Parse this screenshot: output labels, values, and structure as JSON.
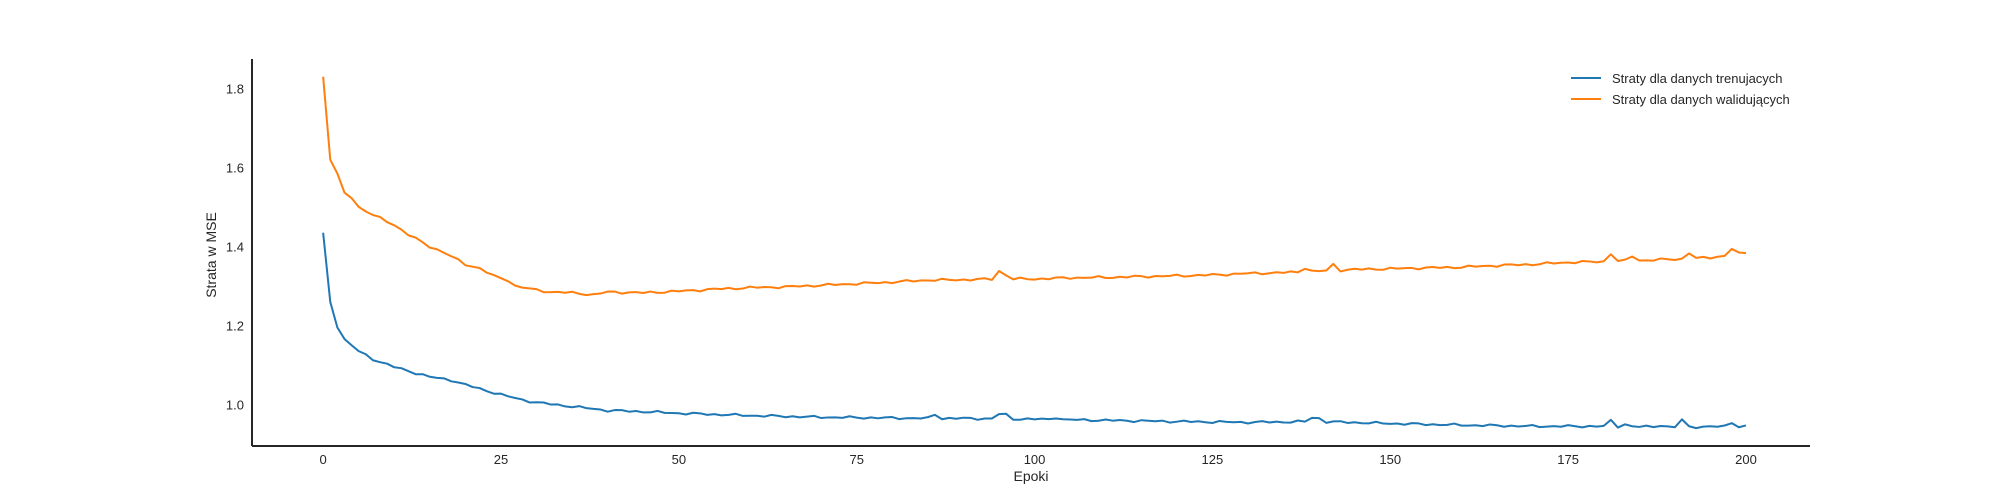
{
  "chart_data": {
    "type": "line",
    "xlabel": "Epoki",
    "ylabel": "Strata w MSE",
    "xlim": [
      -10,
      209
    ],
    "ylim": [
      0.895,
      1.875
    ],
    "xticks": [
      0,
      25,
      50,
      75,
      100,
      125,
      150,
      175,
      200
    ],
    "yticks": [
      1.0,
      1.2,
      1.4,
      1.6,
      1.8
    ],
    "ytick_labels": [
      "1.0",
      "1.2",
      "1.4",
      "1.6",
      "1.8"
    ],
    "grid": false,
    "legend_position": "top-right",
    "series": [
      {
        "name": "Straty dla danych trenujacych",
        "color": "#1f77b4",
        "anchors": [
          [
            0,
            1.435
          ],
          [
            1,
            1.26
          ],
          [
            2,
            1.195
          ],
          [
            3,
            1.165
          ],
          [
            4,
            1.15
          ],
          [
            5,
            1.135
          ],
          [
            7,
            1.115
          ],
          [
            10,
            1.095
          ],
          [
            12,
            1.085
          ],
          [
            15,
            1.07
          ],
          [
            18,
            1.062
          ],
          [
            20,
            1.05
          ],
          [
            22,
            1.04
          ],
          [
            25,
            1.025
          ],
          [
            28,
            1.012
          ],
          [
            30,
            1.005
          ],
          [
            35,
            0.995
          ],
          [
            40,
            0.985
          ],
          [
            45,
            0.982
          ],
          [
            50,
            0.978
          ],
          [
            60,
            0.972
          ],
          [
            70,
            0.968
          ],
          [
            80,
            0.966
          ],
          [
            85,
            0.965
          ],
          [
            90,
            0.965
          ],
          [
            100,
            0.963
          ],
          [
            110,
            0.96
          ],
          [
            120,
            0.957
          ],
          [
            130,
            0.955
          ],
          [
            140,
            0.957
          ],
          [
            150,
            0.952
          ],
          [
            160,
            0.948
          ],
          [
            170,
            0.945
          ],
          [
            180,
            0.945
          ],
          [
            190,
            0.943
          ],
          [
            200,
            0.945
          ]
        ],
        "bumps": [
          [
            86,
            0.01
          ],
          [
            95,
            0.012
          ],
          [
            96,
            0.01
          ],
          [
            103,
            0.006
          ],
          [
            139,
            0.01
          ],
          [
            140,
            0.008
          ],
          [
            181,
            0.014
          ],
          [
            183,
            0.006
          ],
          [
            188,
            0.005
          ],
          [
            191,
            0.018
          ],
          [
            198,
            0.01
          ]
        ]
      },
      {
        "name": "Straty dla danych walidujących",
        "color": "#ff7f0e",
        "anchors": [
          [
            0,
            1.83
          ],
          [
            1,
            1.62
          ],
          [
            2,
            1.585
          ],
          [
            3,
            1.535
          ],
          [
            4,
            1.525
          ],
          [
            5,
            1.5
          ],
          [
            7,
            1.48
          ],
          [
            10,
            1.455
          ],
          [
            12,
            1.43
          ],
          [
            15,
            1.4
          ],
          [
            17,
            1.385
          ],
          [
            18,
            1.375
          ],
          [
            20,
            1.355
          ],
          [
            22,
            1.345
          ],
          [
            24,
            1.325
          ],
          [
            26,
            1.315
          ],
          [
            27,
            1.3
          ],
          [
            30,
            1.29
          ],
          [
            32,
            1.285
          ],
          [
            35,
            1.283
          ],
          [
            38,
            1.278
          ],
          [
            40,
            1.285
          ],
          [
            45,
            1.283
          ],
          [
            50,
            1.287
          ],
          [
            55,
            1.292
          ],
          [
            60,
            1.296
          ],
          [
            65,
            1.298
          ],
          [
            70,
            1.302
          ],
          [
            75,
            1.306
          ],
          [
            80,
            1.31
          ],
          [
            85,
            1.315
          ],
          [
            90,
            1.316
          ],
          [
            95,
            1.318
          ],
          [
            100,
            1.318
          ],
          [
            105,
            1.321
          ],
          [
            110,
            1.322
          ],
          [
            115,
            1.324
          ],
          [
            120,
            1.326
          ],
          [
            125,
            1.328
          ],
          [
            130,
            1.332
          ],
          [
            135,
            1.334
          ],
          [
            140,
            1.338
          ],
          [
            145,
            1.342
          ],
          [
            150,
            1.344
          ],
          [
            155,
            1.346
          ],
          [
            160,
            1.348
          ],
          [
            165,
            1.352
          ],
          [
            170,
            1.355
          ],
          [
            175,
            1.36
          ],
          [
            180,
            1.362
          ],
          [
            185,
            1.365
          ],
          [
            190,
            1.368
          ],
          [
            195,
            1.372
          ],
          [
            200,
            1.384
          ]
        ],
        "bumps": [
          [
            95,
            0.02
          ],
          [
            96,
            0.01
          ],
          [
            138,
            0.01
          ],
          [
            142,
            0.015
          ],
          [
            181,
            0.02
          ],
          [
            184,
            0.012
          ],
          [
            192,
            0.015
          ],
          [
            198,
            0.016
          ]
        ]
      }
    ]
  }
}
